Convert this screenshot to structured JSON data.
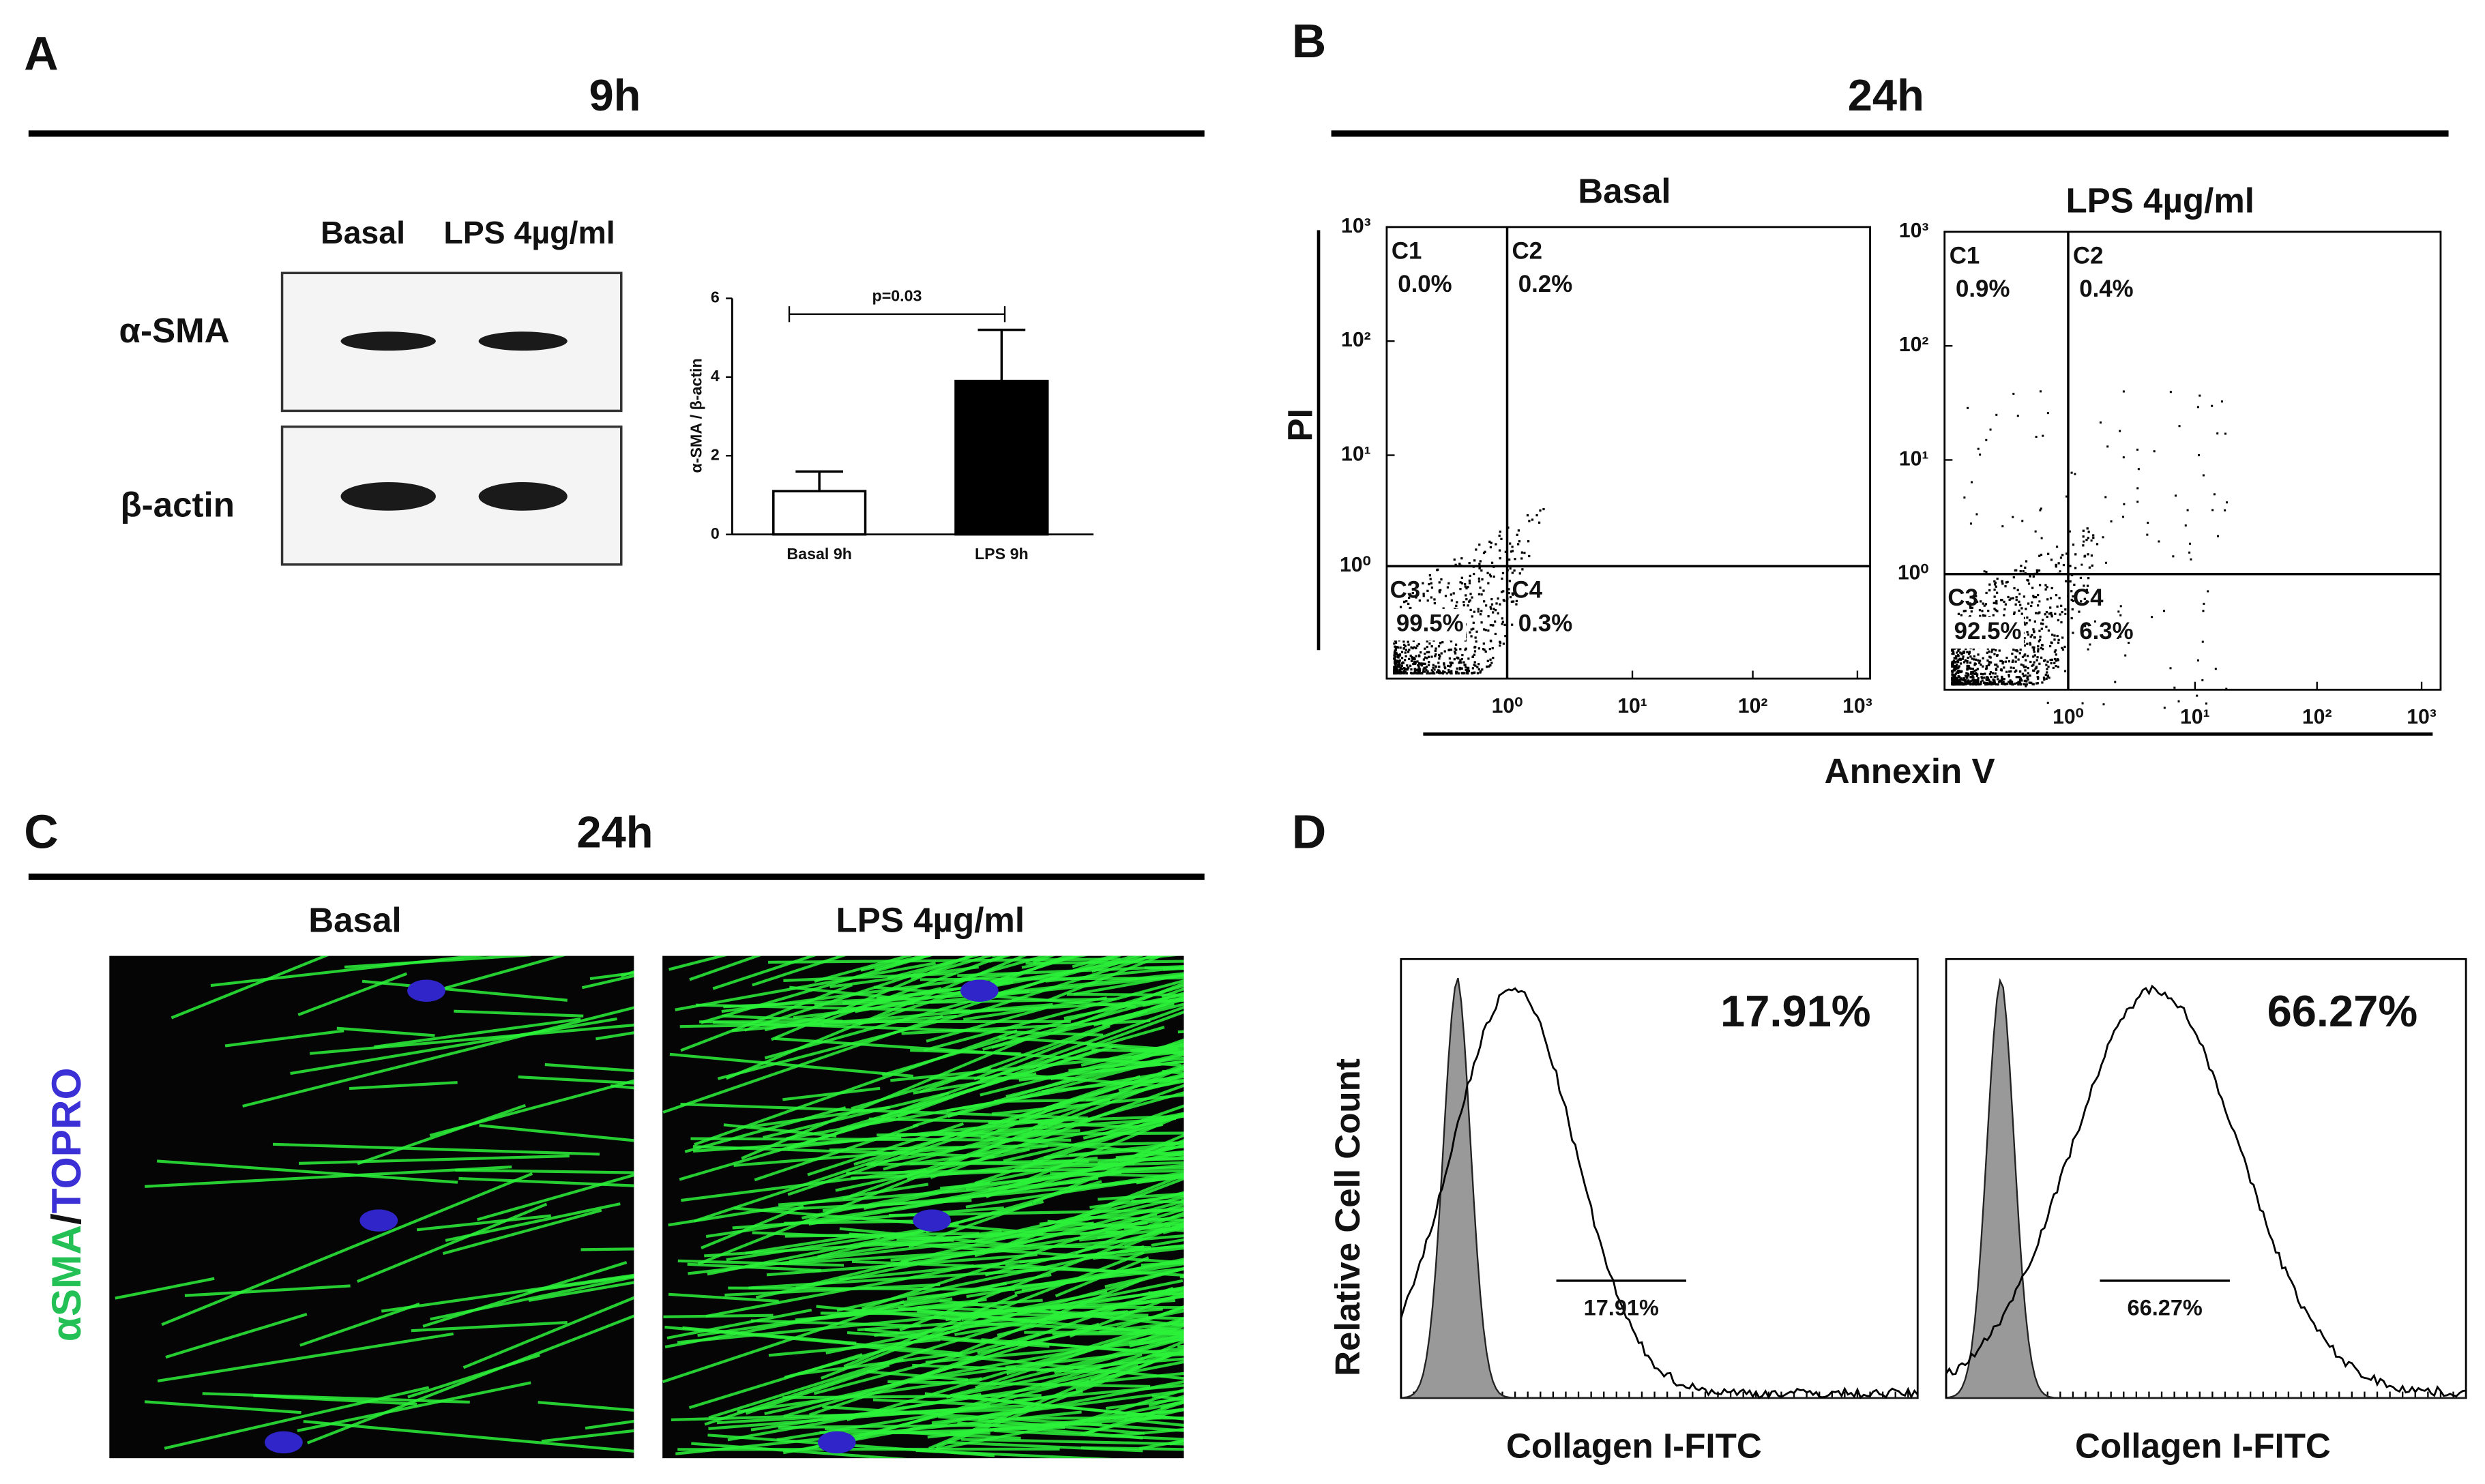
{
  "panel_a": {
    "letter": "A",
    "title": "9h",
    "lanes": [
      "Basal",
      "LPS 4µg/ml"
    ],
    "proteins": [
      "α-SMA",
      "β-actin"
    ],
    "chart": {
      "type": "bar",
      "ylabel": "α-SMA / β-actin",
      "categories": [
        "Basal 9h",
        "LPS 9h"
      ],
      "values": [
        1.1,
        3.9
      ],
      "errors": [
        0.5,
        1.3
      ],
      "colors": [
        "#ffffff",
        "#000000"
      ],
      "ylim": [
        0,
        6
      ],
      "yticks": [
        0,
        2,
        4,
        6
      ],
      "annotation": "p=0.03"
    }
  },
  "panel_b": {
    "letter": "B",
    "title": "24h",
    "ylabel": "PI",
    "xlabel": "Annexin V",
    "ticks": [
      "10⁰",
      "10¹",
      "10²",
      "10³"
    ],
    "plots": [
      {
        "title": "Basal",
        "quadrants": [
          {
            "name": "C1",
            "value": "0.0%"
          },
          {
            "name": "C2",
            "value": "0.2%"
          },
          {
            "name": "C3",
            "value": "99.5%"
          },
          {
            "name": "C4",
            "value": "0.3%"
          }
        ]
      },
      {
        "title": "LPS 4µg/ml",
        "quadrants": [
          {
            "name": "C1",
            "value": "0.9%"
          },
          {
            "name": "C2",
            "value": "0.4%"
          },
          {
            "name": "C3",
            "value": "92.5%"
          },
          {
            "name": "C4",
            "value": "6.3%"
          }
        ]
      }
    ]
  },
  "panel_c": {
    "letter": "C",
    "title": "24h",
    "columns": [
      "Basal",
      "LPS 4µg/ml"
    ],
    "stain": [
      "αSMA",
      "/",
      "TOPRO"
    ]
  },
  "panel_d": {
    "letter": "D",
    "ylabel": "Relative Cell Count",
    "plots": [
      {
        "value": "17.91%",
        "gate": "17.91%",
        "xlabel": "Collagen I-FITC"
      },
      {
        "value": "66.27%",
        "gate": "66.27%",
        "xlabel": "Collagen I-FITC"
      }
    ]
  }
}
